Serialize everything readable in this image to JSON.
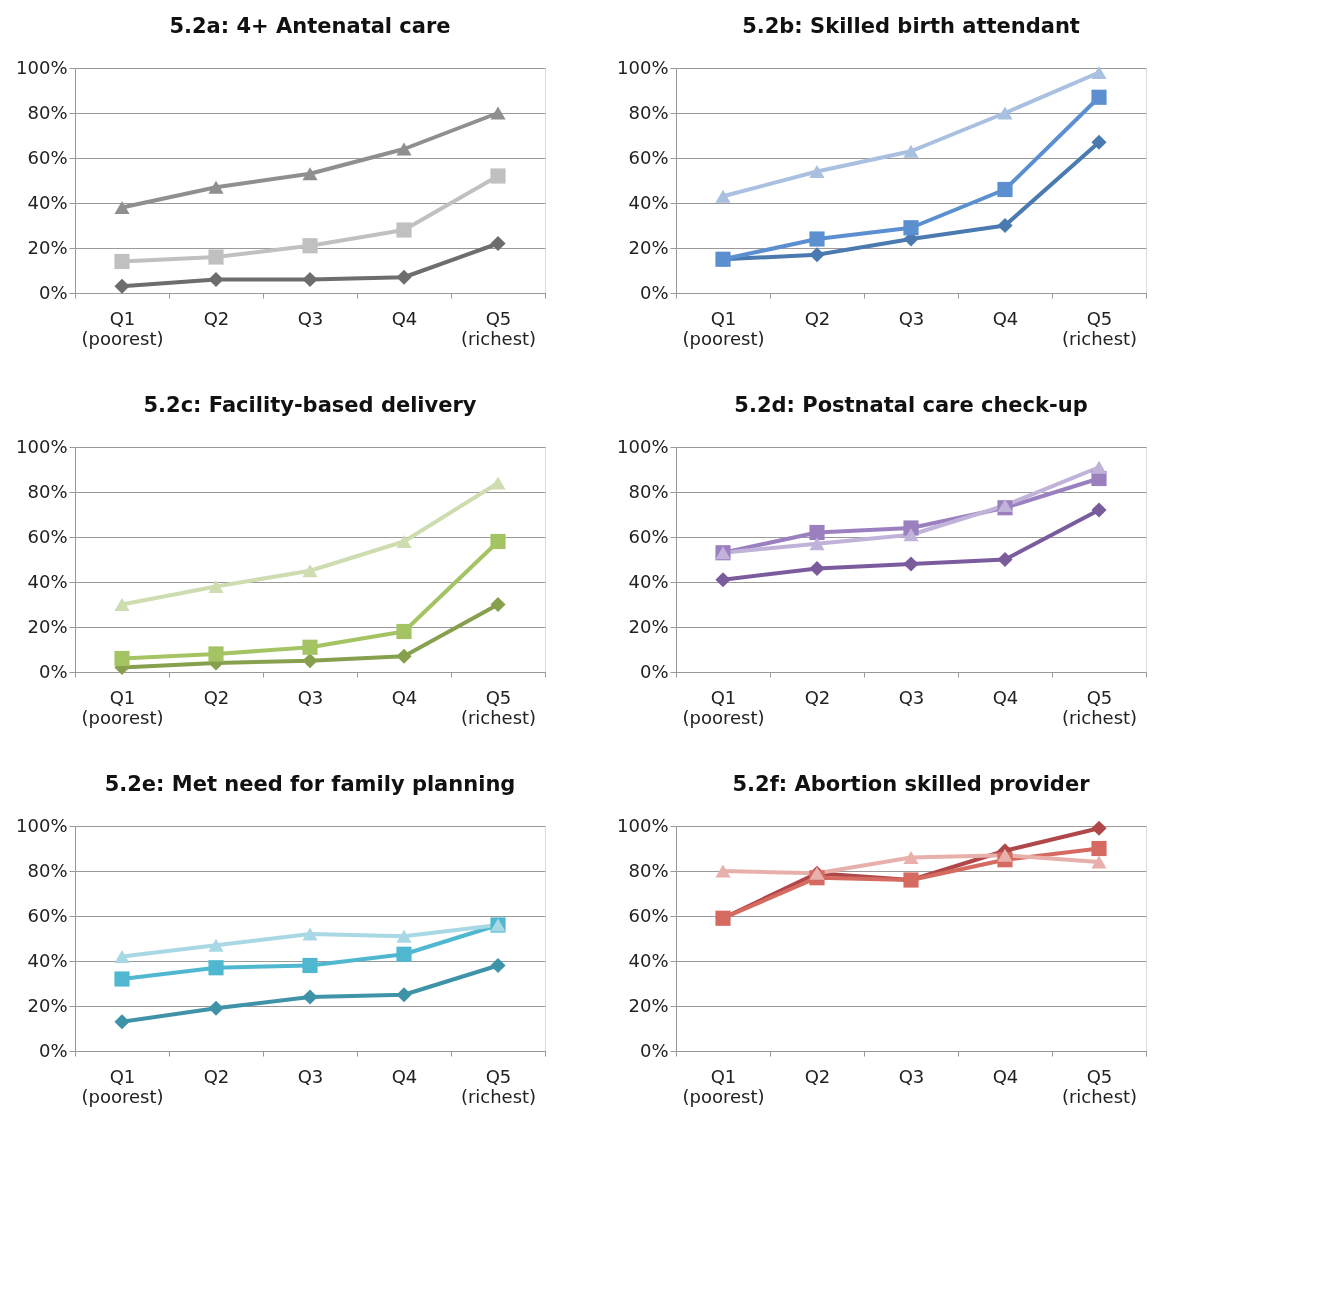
{
  "chart_data": [
    {
      "type": "line",
      "title": "5.2a: 4+ Antenatal care",
      "categories": [
        "Q1\n(poorest)",
        "Q2",
        "Q3",
        "Q4",
        "Q5\n(richest)"
      ],
      "ylim": [
        0,
        100
      ],
      "yticks": [
        {
          "value": 0,
          "label": "0%"
        },
        {
          "value": 20,
          "label": "20%"
        },
        {
          "value": 40,
          "label": "40%"
        },
        {
          "value": 60,
          "label": "60%"
        },
        {
          "value": 80,
          "label": "80%"
        },
        {
          "value": 100,
          "label": "100%"
        }
      ],
      "grid": "y",
      "legend": false,
      "line_style": "solid",
      "series": [
        {
          "color": "#6d6d6d",
          "marker": "diamond",
          "values": [
            3,
            6,
            6,
            7,
            22
          ]
        },
        {
          "color": "#c0c0c0",
          "marker": "square",
          "values": [
            14,
            16,
            21,
            28,
            52
          ]
        },
        {
          "color": "#8f8f8f",
          "marker": "triangle",
          "values": [
            38,
            47,
            53,
            64,
            80
          ]
        }
      ]
    },
    {
      "type": "line",
      "title": "5.2b: Skilled birth attendant",
      "categories": [
        "Q1\n(poorest)",
        "Q2",
        "Q3",
        "Q4",
        "Q5\n(richest)"
      ],
      "ylim": [
        0,
        100
      ],
      "yticks": [
        {
          "value": 0,
          "label": "0%"
        },
        {
          "value": 20,
          "label": "20%"
        },
        {
          "value": 40,
          "label": "40%"
        },
        {
          "value": 60,
          "label": "60%"
        },
        {
          "value": 80,
          "label": "80%"
        },
        {
          "value": 100,
          "label": "100%"
        }
      ],
      "grid": "y",
      "legend": false,
      "line_style": "solid",
      "series": [
        {
          "color": "#4a7ab0",
          "marker": "diamond",
          "values": [
            15,
            17,
            24,
            30,
            67
          ]
        },
        {
          "color": "#5b8fd0",
          "marker": "square",
          "values": [
            15,
            24,
            29,
            46,
            87
          ]
        },
        {
          "color": "#a9c0e0",
          "marker": "triangle",
          "values": [
            43,
            54,
            63,
            80,
            98
          ]
        }
      ]
    },
    {
      "type": "line",
      "title": "5.2c: Facility-based delivery",
      "categories": [
        "Q1\n(poorest)",
        "Q2",
        "Q3",
        "Q4",
        "Q5\n(richest)"
      ],
      "ylim": [
        0,
        100
      ],
      "yticks": [
        {
          "value": 0,
          "label": "0%"
        },
        {
          "value": 20,
          "label": "20%"
        },
        {
          "value": 40,
          "label": "40%"
        },
        {
          "value": 60,
          "label": "60%"
        },
        {
          "value": 80,
          "label": "80%"
        },
        {
          "value": 100,
          "label": "100%"
        }
      ],
      "grid": "y",
      "legend": false,
      "line_style": "solid",
      "series": [
        {
          "color": "#86a04e",
          "marker": "diamond",
          "values": [
            2,
            4,
            5,
            7,
            30
          ]
        },
        {
          "color": "#a4c464",
          "marker": "square",
          "values": [
            6,
            8,
            11,
            18,
            58
          ]
        },
        {
          "color": "#cdddb0",
          "marker": "triangle",
          "values": [
            30,
            38,
            45,
            58,
            84
          ]
        }
      ]
    },
    {
      "type": "line",
      "title": "5.2d: Postnatal care check-up",
      "categories": [
        "Q1\n(poorest)",
        "Q2",
        "Q3",
        "Q4",
        "Q5\n(richest)"
      ],
      "ylim": [
        0,
        100
      ],
      "yticks": [
        {
          "value": 0,
          "label": "0%"
        },
        {
          "value": 20,
          "label": "20%"
        },
        {
          "value": 40,
          "label": "40%"
        },
        {
          "value": 60,
          "label": "60%"
        },
        {
          "value": 80,
          "label": "80%"
        },
        {
          "value": 100,
          "label": "100%"
        }
      ],
      "grid": "y",
      "legend": false,
      "line_style": "solid",
      "series": [
        {
          "color": "#7a5c9c",
          "marker": "diamond",
          "values": [
            41,
            46,
            48,
            50,
            72
          ]
        },
        {
          "color": "#9b80c0",
          "marker": "square",
          "values": [
            53,
            62,
            64,
            73,
            86
          ]
        },
        {
          "color": "#c0b2d8",
          "marker": "triangle",
          "values": [
            53,
            57,
            61,
            74,
            91
          ]
        }
      ]
    },
    {
      "type": "line",
      "title": "5.2e: Met need for family planning",
      "categories": [
        "Q1\n(poorest)",
        "Q2",
        "Q3",
        "Q4",
        "Q5\n(richest)"
      ],
      "ylim": [
        0,
        100
      ],
      "yticks": [
        {
          "value": 0,
          "label": "0%"
        },
        {
          "value": 20,
          "label": "20%"
        },
        {
          "value": 40,
          "label": "40%"
        },
        {
          "value": 60,
          "label": "60%"
        },
        {
          "value": 80,
          "label": "80%"
        },
        {
          "value": 100,
          "label": "100%"
        }
      ],
      "grid": "y",
      "legend": false,
      "line_style": "solid",
      "series": [
        {
          "color": "#3f93a8",
          "marker": "diamond",
          "values": [
            13,
            19,
            24,
            25,
            38
          ]
        },
        {
          "color": "#4fb8d0",
          "marker": "square",
          "values": [
            32,
            37,
            38,
            43,
            56
          ]
        },
        {
          "color": "#a8d8e4",
          "marker": "triangle",
          "values": [
            42,
            47,
            52,
            51,
            56
          ]
        }
      ]
    },
    {
      "type": "line",
      "title": "5.2f: Abortion skilled provider",
      "categories": [
        "Q1\n(poorest)",
        "Q2",
        "Q3",
        "Q4",
        "Q5\n(richest)"
      ],
      "ylim": [
        0,
        100
      ],
      "yticks": [
        {
          "value": 0,
          "label": "0%"
        },
        {
          "value": 20,
          "label": "20%"
        },
        {
          "value": 40,
          "label": "40%"
        },
        {
          "value": 60,
          "label": "60%"
        },
        {
          "value": 80,
          "label": "80%"
        },
        {
          "value": 100,
          "label": "100%"
        }
      ],
      "grid": "y",
      "legend": false,
      "line_style": "solid",
      "series": [
        {
          "color": "#b0484a",
          "marker": "diamond",
          "values": [
            59,
            79,
            76,
            89,
            99
          ]
        },
        {
          "color": "#d46a60",
          "marker": "square",
          "values": [
            59,
            77,
            76,
            85,
            90
          ]
        },
        {
          "color": "#e8b0aa",
          "marker": "triangle",
          "values": [
            80,
            79,
            86,
            87,
            84
          ]
        }
      ]
    }
  ]
}
